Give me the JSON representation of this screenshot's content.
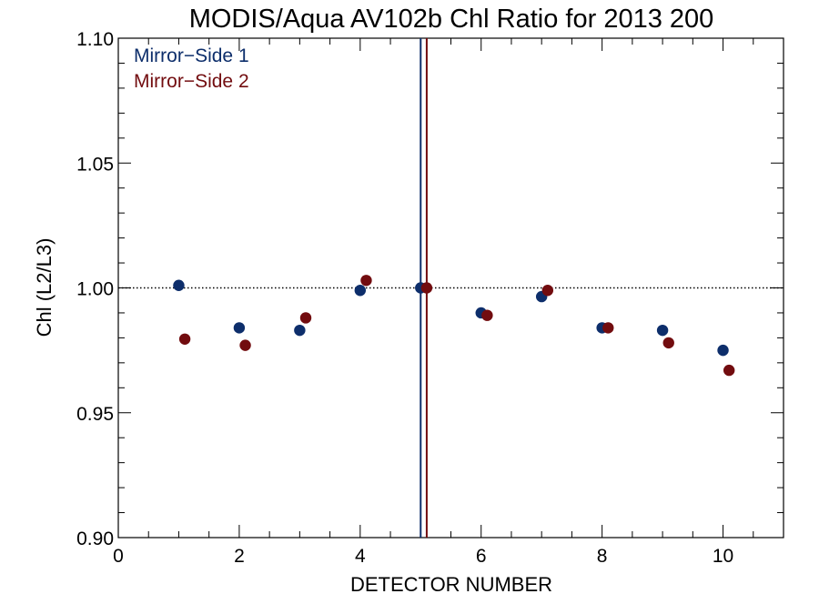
{
  "chart_data": {
    "type": "scatter",
    "title": "MODIS/Aqua AV102b Chl Ratio for 2013 200",
    "xlabel": "DETECTOR NUMBER",
    "ylabel": "Chl (L2/L3)",
    "xlim": [
      0,
      11
    ],
    "ylim": [
      0.9,
      1.1
    ],
    "x_ticks": [
      0,
      2,
      4,
      6,
      8,
      10
    ],
    "x_tick_labels": [
      "0",
      "2",
      "4",
      "6",
      "8",
      "10"
    ],
    "y_ticks": [
      0.9,
      0.95,
      1.0,
      1.05,
      1.1
    ],
    "y_tick_labels": [
      "0.90",
      "0.95",
      "1.00",
      "1.05",
      "1.10"
    ],
    "reference_line_y": 1.0,
    "grid": false,
    "legend_position": "top-left",
    "series": [
      {
        "name": "Mirror−Side 1",
        "color": "#0d2e6b",
        "x": [
          1,
          2,
          3,
          4,
          5,
          6,
          7,
          8,
          9,
          10
        ],
        "y": [
          1.001,
          0.984,
          0.983,
          0.999,
          1.0,
          0.99,
          0.9965,
          0.984,
          0.983,
          0.975
        ],
        "vertical_line_x": 5.0
      },
      {
        "name": "Mirror−Side 2",
        "color": "#720c0f",
        "x": [
          1.1,
          2.1,
          3.1,
          4.1,
          5.1,
          6.1,
          7.1,
          8.1,
          9.1,
          10.1
        ],
        "y": [
          0.9795,
          0.977,
          0.988,
          1.003,
          1.0,
          0.989,
          0.999,
          0.984,
          0.978,
          0.967
        ],
        "vertical_line_x": 5.1
      }
    ]
  }
}
